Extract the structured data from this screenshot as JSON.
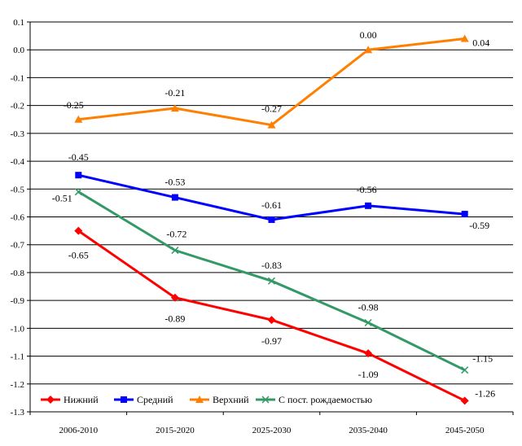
{
  "chart_data": {
    "type": "line",
    "title": "",
    "xlabel": "",
    "ylabel": "",
    "categories": [
      "2006-2010",
      "2015-2020",
      "2025-2030",
      "2035-2040",
      "2045-2050"
    ],
    "ylim": [
      -1.3,
      0.1
    ],
    "ytick_step": 0.1,
    "yticks": [
      "0.1",
      "0.0",
      "-0.1",
      "-0.2",
      "-0.3",
      "-0.4",
      "-0.5",
      "-0.6",
      "-0.7",
      "-0.8",
      "-0.9",
      "-1.0",
      "-1.1",
      "-1.2",
      "-1.3"
    ],
    "grid": true,
    "legend_position": "bottom-left",
    "series": [
      {
        "name": "Нижний",
        "color": "#ff0000",
        "marker": "diamond",
        "values": [
          -0.65,
          -0.89,
          -0.97,
          -1.09,
          -1.26
        ],
        "labels": [
          "-0.65",
          "-0.89",
          "-0.97",
          "-1.09",
          "-1.26"
        ]
      },
      {
        "name": "Средний",
        "color": "#0000ff",
        "marker": "square",
        "values": [
          -0.45,
          -0.53,
          -0.61,
          -0.56,
          -0.59
        ],
        "labels": [
          "-0.45",
          "-0.53",
          "-0.61",
          "-0.56",
          "-0.59"
        ]
      },
      {
        "name": "Верхний",
        "color": "#ff7f00",
        "marker": "triangle",
        "values": [
          -0.25,
          -0.21,
          -0.27,
          0.0,
          0.04
        ],
        "labels": [
          "-0.25",
          "-0.21",
          "-0.27",
          "0.00",
          "0.04"
        ]
      },
      {
        "name": "С пост. рождаемостью",
        "color": "#339966",
        "marker": "x",
        "values": [
          -0.51,
          -0.72,
          -0.83,
          -0.98,
          -1.15
        ],
        "labels": [
          "-0.51",
          "-0.72",
          "-0.83",
          "-0.98",
          "-1.15"
        ]
      }
    ]
  }
}
